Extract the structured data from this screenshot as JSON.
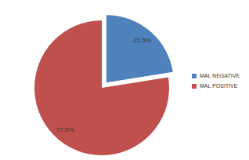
{
  "chart_data": {
    "type": "pie",
    "categories": [
      "MAL NEGATIVE",
      "MAL POSITIVE"
    ],
    "values": [
      22.5,
      77.5
    ],
    "value_labels": [
      "22.5%",
      "77.5%,"
    ],
    "colors": [
      "#4F81BD",
      "#C0504D"
    ],
    "data_labels": true,
    "legend": "right"
  }
}
